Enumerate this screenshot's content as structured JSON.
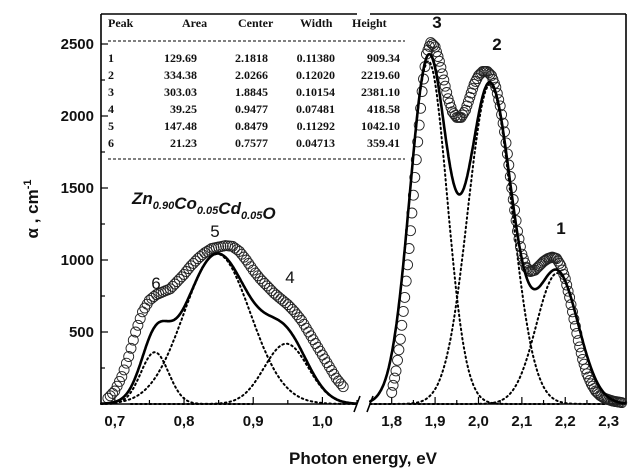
{
  "chart_data": {
    "type": "line",
    "xlabel": "Photon energy, eV",
    "ylabel": "α , cm",
    "ylabel_superscript": "-1",
    "ylim": [
      0,
      2650
    ],
    "x_axis_break": true,
    "x_segments": [
      {
        "xlim": [
          0.68,
          1.05
        ],
        "ticks": [
          0.7,
          0.8,
          0.9,
          1.0
        ],
        "tick_labels": [
          "0,7",
          "0,8",
          "0,9",
          "1,0"
        ]
      },
      {
        "xlim": [
          1.75,
          2.34
        ],
        "ticks": [
          1.8,
          1.9,
          2.0,
          2.1,
          2.2,
          2.3
        ],
        "tick_labels": [
          "1,8",
          "1,9",
          "2,0",
          "2,1",
          "2,2",
          "2,3"
        ]
      }
    ],
    "y_ticks": [
      500,
      1000,
      1500,
      2000,
      2500
    ],
    "y_tick_labels": [
      "500",
      "1000",
      "1500",
      "2000",
      "2500"
    ],
    "compound": {
      "parts": [
        {
          "base": "Zn",
          "sub": "0.90"
        },
        {
          "base": "Co",
          "sub": "0.05"
        },
        {
          "base": "Cd",
          "sub": "0.05"
        },
        {
          "base": "O",
          "sub": ""
        }
      ]
    },
    "table": {
      "columns": [
        "Peak",
        "Area",
        "Center",
        "Width",
        "Height"
      ],
      "rows": [
        [
          "1",
          "129.69",
          "2.1818",
          "0.11380",
          "909.34"
        ],
        [
          "2",
          "334.38",
          "2.0266",
          "0.12020",
          "2219.60"
        ],
        [
          "3",
          "303.03",
          "1.8845",
          "0.10154",
          "2381.10"
        ],
        [
          "4",
          "39.25",
          "0.9477",
          "0.07481",
          "418.58"
        ],
        [
          "5",
          "147.48",
          "0.8479",
          "0.11292",
          "1042.10"
        ],
        [
          "6",
          "21.23",
          "0.7577",
          "0.04713",
          "359.41"
        ]
      ]
    },
    "peaks": [
      {
        "label": "1",
        "center": 2.1818,
        "width": 0.1138,
        "height": 909.34
      },
      {
        "label": "2",
        "center": 2.0266,
        "width": 0.1202,
        "height": 2219.6
      },
      {
        "label": "3",
        "center": 1.8845,
        "width": 0.10154,
        "height": 2381.1
      },
      {
        "label": "4",
        "center": 0.9477,
        "width": 0.07481,
        "height": 418.58
      },
      {
        "label": "5",
        "center": 0.8479,
        "width": 0.11292,
        "height": 1042.1
      },
      {
        "label": "6",
        "center": 0.7577,
        "width": 0.04713,
        "height": 359.41
      }
    ],
    "series": [
      {
        "style": "open-circle markers",
        "segment": 0,
        "x": [
          0.69,
          0.7,
          0.71,
          0.72,
          0.73,
          0.74,
          0.75,
          0.76,
          0.77,
          0.78,
          0.79,
          0.8,
          0.81,
          0.82,
          0.83,
          0.84,
          0.85,
          0.86,
          0.87,
          0.88,
          0.89,
          0.9,
          0.91,
          0.92,
          0.93,
          0.94,
          0.95,
          0.96,
          0.97,
          0.98,
          0.99,
          1.0,
          1.01,
          1.02,
          1.03
        ],
        "y": [
          40,
          90,
          190,
          330,
          500,
          640,
          720,
          760,
          780,
          800,
          850,
          900,
          960,
          1010,
          1050,
          1080,
          1090,
          1100,
          1095,
          1060,
          1000,
          930,
          870,
          820,
          770,
          730,
          690,
          640,
          580,
          500,
          420,
          340,
          260,
          180,
          120
        ]
      },
      {
        "style": "open-circle markers",
        "segment": 1,
        "x": [
          1.8,
          1.81,
          1.82,
          1.83,
          1.84,
          1.85,
          1.86,
          1.87,
          1.88,
          1.89,
          1.9,
          1.91,
          1.92,
          1.93,
          1.94,
          1.95,
          1.96,
          1.97,
          1.98,
          1.99,
          2.0,
          2.01,
          2.02,
          2.03,
          2.04,
          2.05,
          2.06,
          2.07,
          2.08,
          2.09,
          2.1,
          2.11,
          2.12,
          2.13,
          2.14,
          2.15,
          2.16,
          2.17,
          2.18,
          2.19,
          2.2,
          2.21,
          2.22,
          2.23,
          2.24,
          2.25,
          2.26,
          2.27,
          2.28,
          2.29,
          2.3,
          2.31,
          2.32,
          2.33
        ],
        "y": [
          80,
          230,
          450,
          740,
          1080,
          1450,
          1820,
          2170,
          2430,
          2510,
          2480,
          2380,
          2250,
          2120,
          2030,
          1990,
          1990,
          2040,
          2130,
          2220,
          2280,
          2310,
          2310,
          2280,
          2200,
          2070,
          1890,
          1660,
          1420,
          1200,
          1040,
          950,
          920,
          930,
          960,
          990,
          1010,
          1020,
          1010,
          960,
          870,
          740,
          590,
          440,
          310,
          210,
          140,
          90,
          60,
          40,
          30,
          20,
          15,
          10
        ]
      },
      {
        "style": "thick solid line (fit)"
      },
      {
        "style": "dotted line (peak components)"
      }
    ]
  }
}
